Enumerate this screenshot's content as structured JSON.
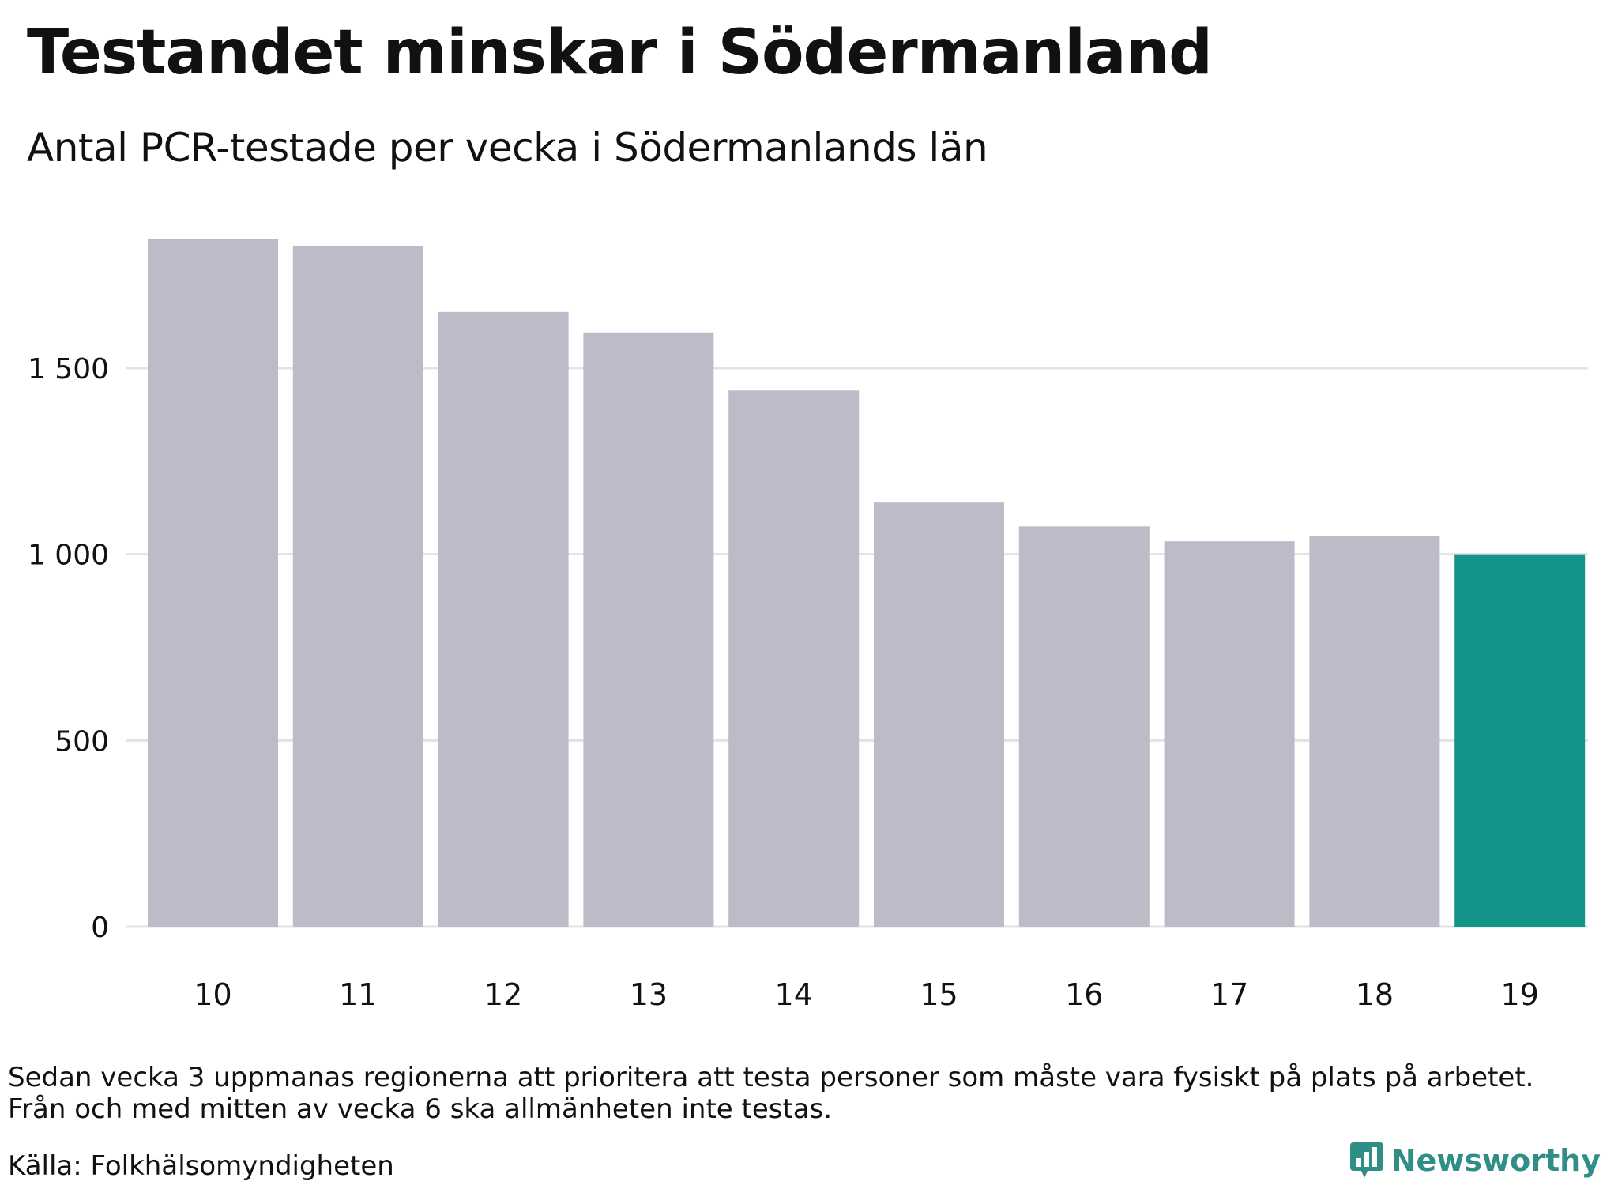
{
  "title": "Testandet minskar i Södermanland",
  "subtitle": "Antal PCR-testade per vecka i Södermanlands län",
  "note_lines": [
    "Sedan vecka 3 uppmanas regionerna att prioritera att testa personer som måste vara fysiskt på plats på arbetet.",
    "Från och med mitten av vecka 6 ska allmänheten inte testas."
  ],
  "source": "Källa: Folkhälsomyndigheten",
  "brand": {
    "label": "Newsworthy",
    "icon": "bar-chart-logo-icon"
  },
  "colors": {
    "bar": "#bdbbc8",
    "highlight": "#139488",
    "grid": "#e3e3e3",
    "brand": "#2f8f86"
  },
  "chart_data": {
    "type": "bar",
    "categories": [
      "10",
      "11",
      "12",
      "13",
      "14",
      "15",
      "16",
      "17",
      "18",
      "19"
    ],
    "values": [
      1848,
      1828,
      1651,
      1596,
      1440,
      1139,
      1075,
      1035,
      1048,
      1000
    ],
    "highlight_index": 9,
    "yticks": [
      0,
      500,
      1000,
      1500
    ],
    "ytick_labels": [
      "0",
      "500",
      "1 000",
      "1 500"
    ],
    "ylim": [
      0,
      1900
    ],
    "grid": true,
    "xlabel": "",
    "ylabel": ""
  }
}
